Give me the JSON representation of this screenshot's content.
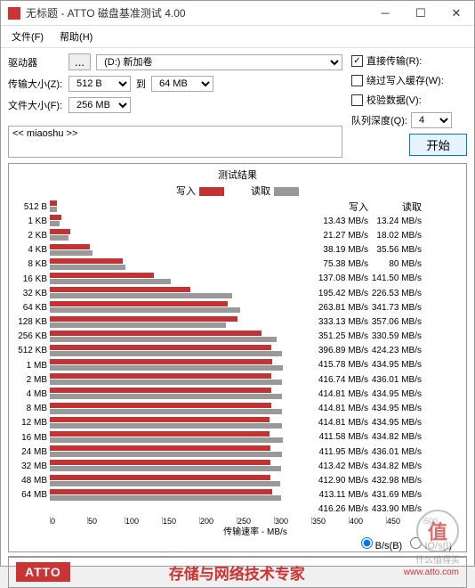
{
  "colors": {
    "write": "#c33333",
    "read": "#999999",
    "accent": "#0078d7"
  },
  "titlebar": {
    "title": "无标题 - ATTO 磁盘基准测试 4.00"
  },
  "menu": {
    "file": "文件(F)",
    "help": "帮助(H)"
  },
  "form": {
    "drive_label": "驱动器",
    "browse": "...",
    "drive_value": "(D:) 新加卷",
    "xfer_label": "传输大小(Z):",
    "xfer_from": "512 B",
    "to": "到",
    "xfer_to": "64 MB",
    "file_label": "文件大小(F):",
    "file_size": "256 MB"
  },
  "options": {
    "direct": "直接传输(R):",
    "bypass": "绕过写入缓存(W):",
    "verify": "校验数据(V):",
    "queue_label": "队列深度(Q):",
    "queue_value": "4",
    "start": "开始"
  },
  "desc_value": "<< miaoshu >>",
  "legend": {
    "title": "测试结果",
    "write": "写入",
    "read": "读取"
  },
  "radio": {
    "bs": "B/s(B)",
    "ios": "IO/s(I)"
  },
  "axis_label": "传输速率 - MB/s",
  "axis_ticks": [
    "0",
    "50",
    "100",
    "150",
    "200",
    "250",
    "300",
    "350",
    "400",
    "450",
    "500"
  ],
  "chart_max": 500,
  "rows": [
    {
      "l": "512 B",
      "w": 13.43,
      "r": 13.24,
      "ws": "13.43 MB/s",
      "rs": "13.24 MB/s"
    },
    {
      "l": "1 KB",
      "w": 21.27,
      "r": 18.02,
      "ws": "21.27 MB/s",
      "rs": "18.02 MB/s"
    },
    {
      "l": "2 KB",
      "w": 38.19,
      "r": 35.56,
      "ws": "38.19 MB/s",
      "rs": "35.56 MB/s"
    },
    {
      "l": "4 KB",
      "w": 75.38,
      "r": 80,
      "ws": "75.38 MB/s",
      "rs": "80 MB/s"
    },
    {
      "l": "8 KB",
      "w": 137.08,
      "r": 141.5,
      "ws": "137.08 MB/s",
      "rs": "141.50 MB/s"
    },
    {
      "l": "16 KB",
      "w": 195.42,
      "r": 226.53,
      "ws": "195.42 MB/s",
      "rs": "226.53 MB/s"
    },
    {
      "l": "32 KB",
      "w": 263.81,
      "r": 341.73,
      "ws": "263.81 MB/s",
      "rs": "341.73 MB/s"
    },
    {
      "l": "64 KB",
      "w": 333.13,
      "r": 357.06,
      "ws": "333.13 MB/s",
      "rs": "357.06 MB/s"
    },
    {
      "l": "128 KB",
      "w": 351.25,
      "r": 330.59,
      "ws": "351.25 MB/s",
      "rs": "330.59 MB/s"
    },
    {
      "l": "256 KB",
      "w": 396.89,
      "r": 424.23,
      "ws": "396.89 MB/s",
      "rs": "424.23 MB/s"
    },
    {
      "l": "512 KB",
      "w": 415.78,
      "r": 434.95,
      "ws": "415.78 MB/s",
      "rs": "434.95 MB/s"
    },
    {
      "l": "1 MB",
      "w": 416.74,
      "r": 436.01,
      "ws": "416.74 MB/s",
      "rs": "436.01 MB/s"
    },
    {
      "l": "2 MB",
      "w": 414.81,
      "r": 434.95,
      "ws": "414.81 MB/s",
      "rs": "434.95 MB/s"
    },
    {
      "l": "4 MB",
      "w": 414.81,
      "r": 434.95,
      "ws": "414.81 MB/s",
      "rs": "434.95 MB/s"
    },
    {
      "l": "8 MB",
      "w": 414.81,
      "r": 434.95,
      "ws": "414.81 MB/s",
      "rs": "434.95 MB/s"
    },
    {
      "l": "12 MB",
      "w": 411.58,
      "r": 434.82,
      "ws": "411.58 MB/s",
      "rs": "434.82 MB/s"
    },
    {
      "l": "16 MB",
      "w": 411.95,
      "r": 436.01,
      "ws": "411.95 MB/s",
      "rs": "436.01 MB/s"
    },
    {
      "l": "24 MB",
      "w": 413.42,
      "r": 434.82,
      "ws": "413.42 MB/s",
      "rs": "434.82 MB/s"
    },
    {
      "l": "32 MB",
      "w": 412.9,
      "r": 432.98,
      "ws": "412.90 MB/s",
      "rs": "432.98 MB/s"
    },
    {
      "l": "48 MB",
      "w": 413.11,
      "r": 431.69,
      "ws": "413.11 MB/s",
      "rs": "431.69 MB/s"
    },
    {
      "l": "64 MB",
      "w": 416.26,
      "r": 433.9,
      "ws": "416.26 MB/s",
      "rs": "433.90 MB/s"
    }
  ],
  "footer": {
    "logo": "ATTO",
    "slogan": "存储与网络技术专家",
    "url": "www.atto.com"
  },
  "watermark": {
    "glyph": "值",
    "text": "什么值得买"
  }
}
